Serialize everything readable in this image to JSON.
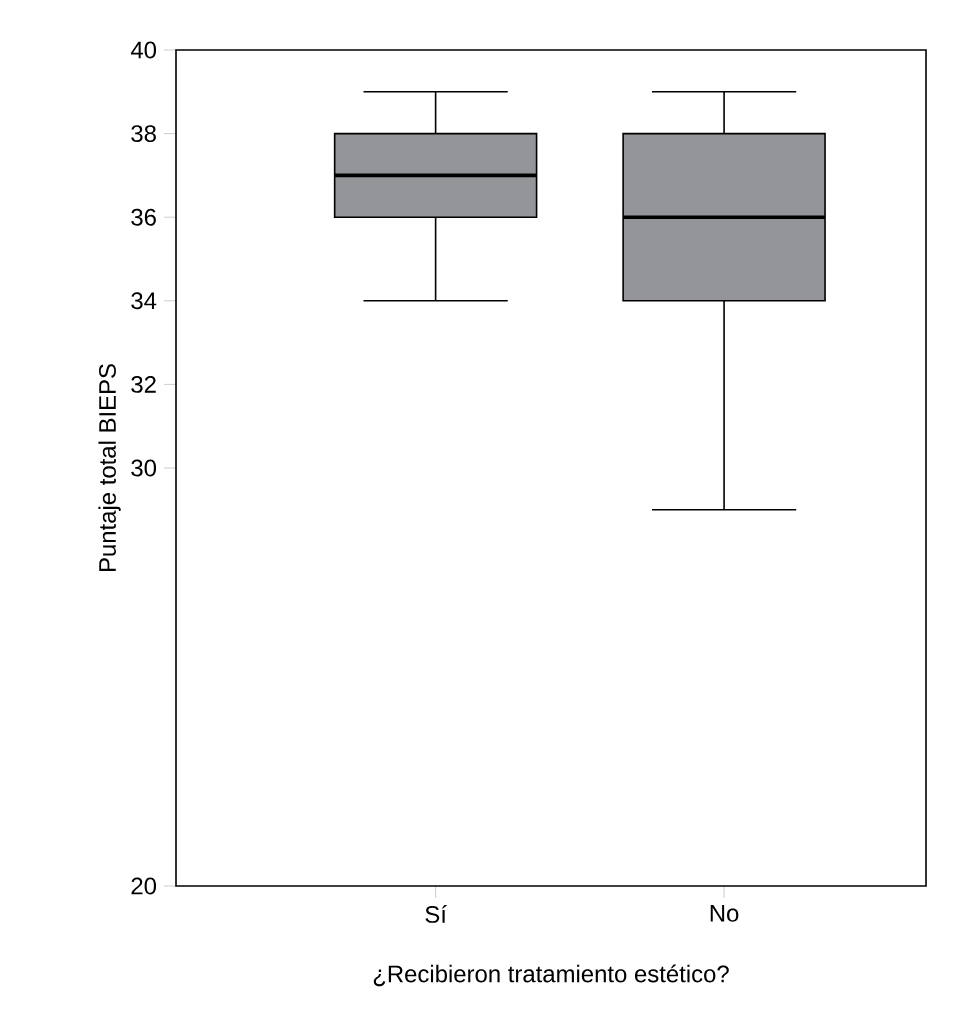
{
  "chart_data": {
    "type": "box",
    "xlabel": "¿Recibieron tratamiento estético?",
    "ylabel": "Puntaje total BIEPS",
    "categories": [
      "Sí",
      "No"
    ],
    "color": "#939598",
    "boxes": [
      {
        "low": 34,
        "q1": 36,
        "median": 37,
        "q3": 38,
        "high": 39
      },
      {
        "low": 29,
        "q1": 34,
        "median": 36,
        "q3": 38,
        "high": 39
      }
    ],
    "ylim": [
      20,
      40
    ],
    "yticks": [
      20,
      30,
      32,
      34,
      36,
      38,
      40
    ],
    "grid": false
  }
}
